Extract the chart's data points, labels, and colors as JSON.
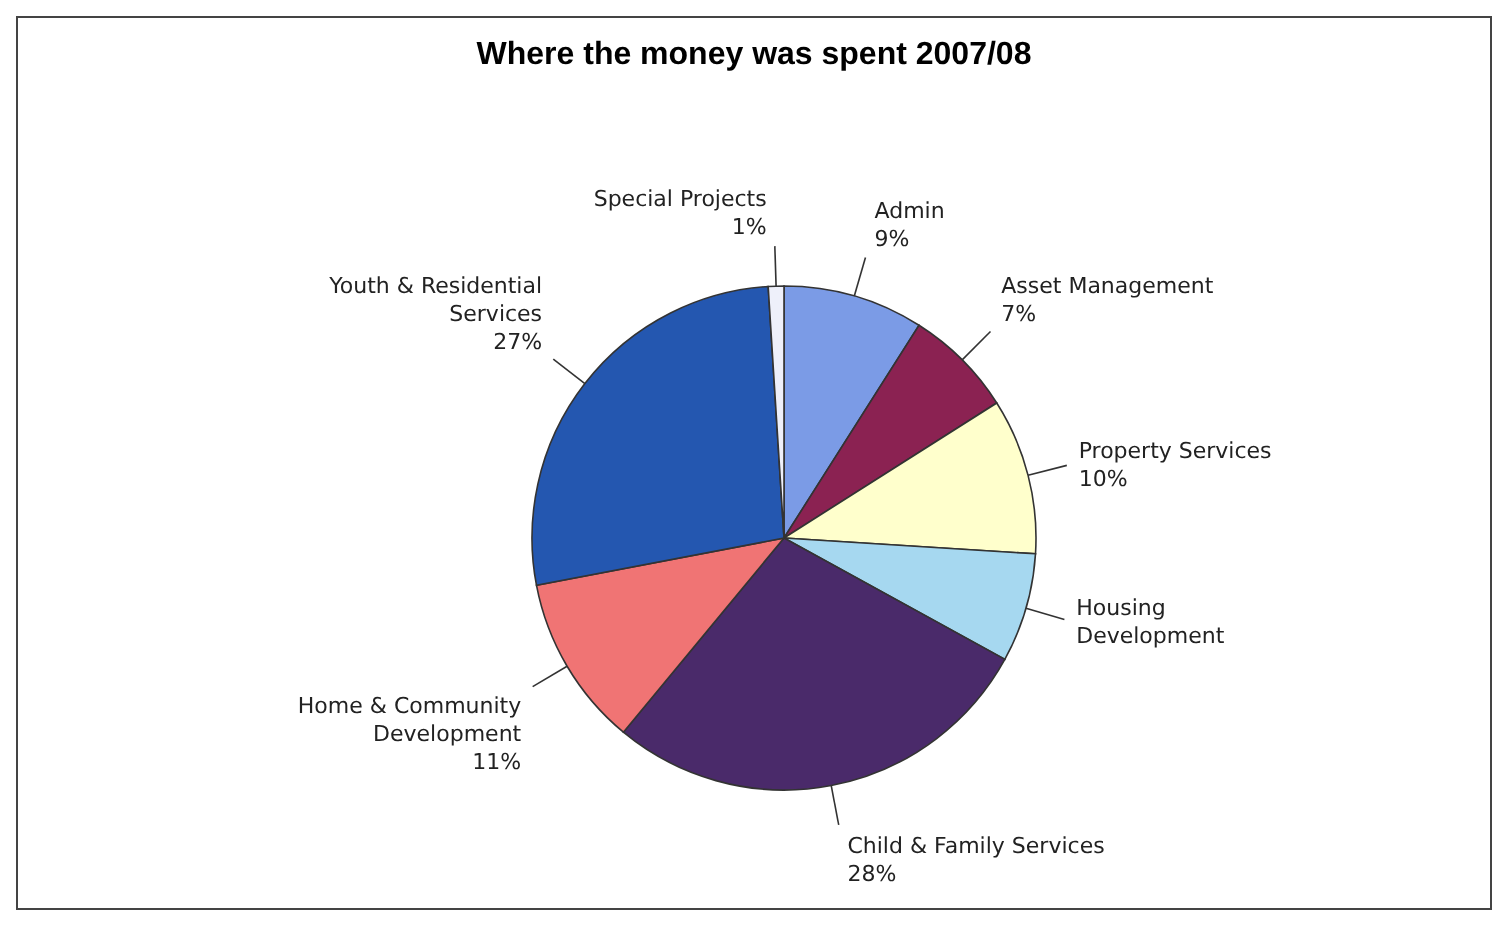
{
  "chart_data": {
    "type": "pie",
    "title": "Where the money was spent 2007/08",
    "categories": [
      "Admin",
      "Asset Management",
      "Property Services",
      "Housing\nDevelopment",
      "Child & Family Services",
      "Home & Community\nDevelopment",
      "Youth & Residential\nServices",
      "Special Projects"
    ],
    "values": [
      9,
      7,
      10,
      7,
      28,
      11,
      27,
      1
    ],
    "value_labels": [
      "9%",
      "7%",
      "10%",
      null,
      "28%",
      "11%",
      "27%",
      "1%"
    ],
    "colors": [
      "#7b9be6",
      "#8b2252",
      "#ffffcc",
      "#a6d8f0",
      "#4a2a6a",
      "#f07474",
      "#2457b0",
      "#eef0fa"
    ],
    "legend": false
  }
}
